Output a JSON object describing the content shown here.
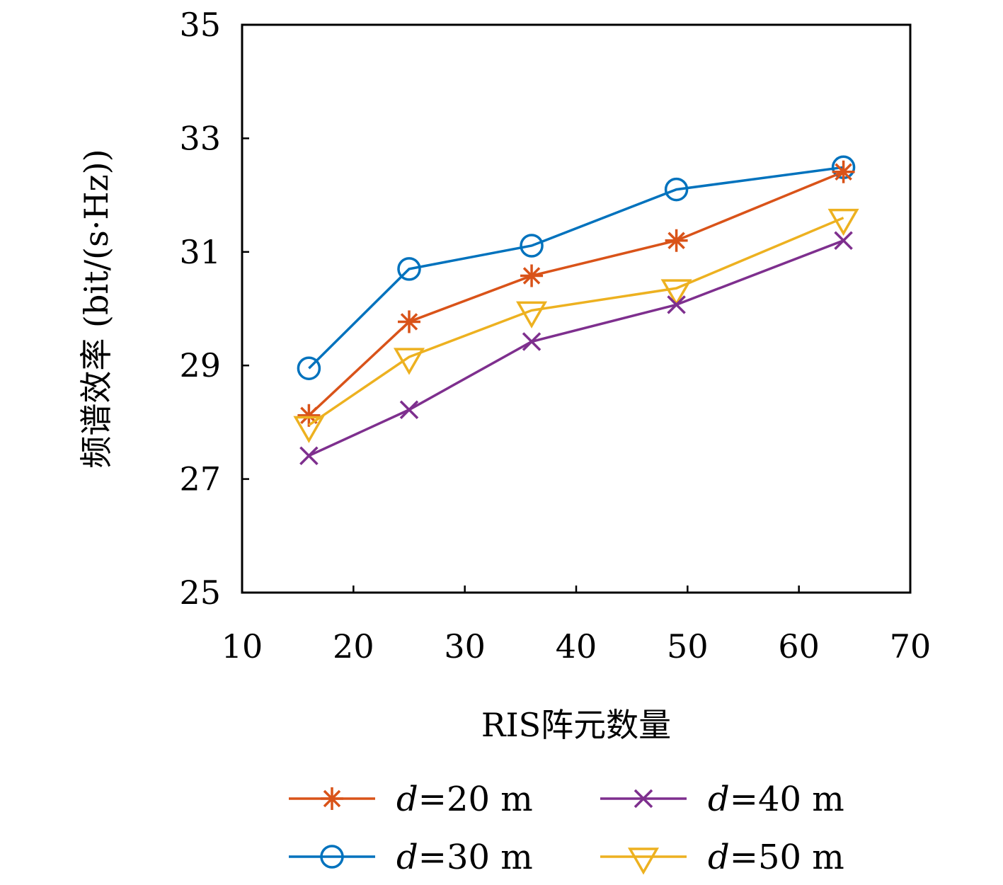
{
  "chart_data": {
    "type": "line",
    "title": "",
    "xlabel": "RIS阵元数量",
    "ylabel": "频谱效率 (bit/(s·Hz))",
    "xlim": [
      10,
      70
    ],
    "ylim": [
      25,
      35
    ],
    "xticks": [
      10,
      20,
      30,
      40,
      50,
      60,
      70
    ],
    "yticks": [
      25,
      27,
      29,
      31,
      33,
      35
    ],
    "xtick_labels": [
      "10",
      "20",
      "30",
      "40",
      "50",
      "60",
      "70"
    ],
    "ytick_labels": [
      "25",
      "27",
      "29",
      "31",
      "33",
      "35"
    ],
    "grid": false,
    "legend_position": "bottom",
    "x": [
      16,
      25,
      36,
      49,
      64
    ],
    "series": [
      {
        "name": "d=20 m",
        "var": "d",
        "rest": "=20 m",
        "color": "#D95319",
        "marker": "asterisk",
        "values": [
          28.12,
          29.77,
          30.58,
          31.2,
          32.41
        ]
      },
      {
        "name": "d=30 m",
        "var": "d",
        "rest": "=30 m",
        "color": "#0072BD",
        "marker": "circle",
        "values": [
          28.95,
          30.7,
          31.11,
          32.1,
          32.49
        ]
      },
      {
        "name": "d=40 m",
        "var": "d",
        "rest": "=40 m",
        "color": "#7E2F8E",
        "marker": "x",
        "values": [
          27.41,
          28.22,
          29.42,
          30.07,
          31.2
        ]
      },
      {
        "name": "d=50 m",
        "var": "d",
        "rest": "=50 m",
        "color": "#EDB120",
        "marker": "triangle-down",
        "values": [
          27.95,
          29.15,
          29.97,
          30.36,
          31.6
        ]
      }
    ]
  }
}
